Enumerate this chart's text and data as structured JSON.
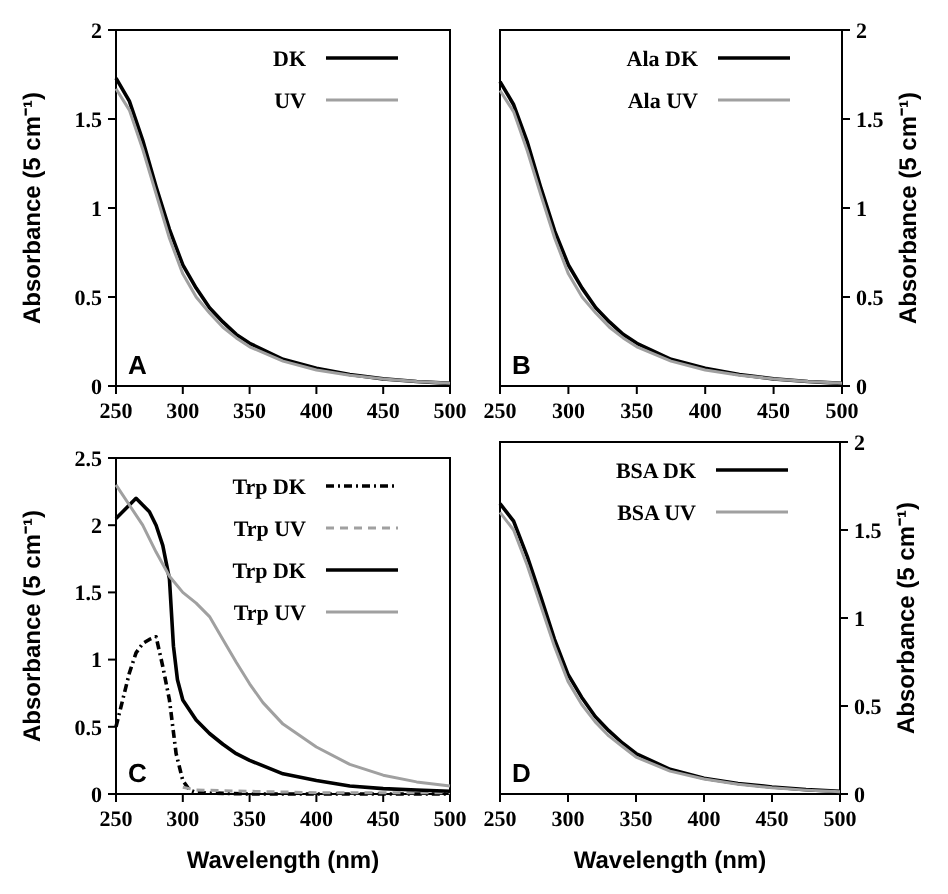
{
  "chart_data": [
    {
      "type": "line",
      "xlim": [
        250,
        500
      ],
      "xticks": [
        250,
        300,
        350,
        400,
        450,
        500
      ],
      "ylim": [
        0,
        2
      ],
      "yticks": [
        0,
        0.5,
        1,
        1.5,
        2
      ],
      "ylabel": "Absorbance  (5 cm⁻¹)",
      "legend": "top right",
      "annotations": [
        "A"
      ],
      "x": [
        250,
        260,
        270,
        280,
        290,
        300,
        310,
        320,
        330,
        340,
        350,
        375,
        400,
        425,
        450,
        475,
        500
      ],
      "series": [
        {
          "name": "DK",
          "color": "#000000",
          "line_style": "solid",
          "values": [
            1.73,
            1.6,
            1.38,
            1.12,
            0.88,
            0.68,
            0.55,
            0.44,
            0.36,
            0.29,
            0.24,
            0.15,
            0.1,
            0.065,
            0.04,
            0.025,
            0.015
          ]
        },
        {
          "name": "UV",
          "color": "#a0a0a0",
          "line_style": "solid",
          "values": [
            1.67,
            1.55,
            1.33,
            1.08,
            0.83,
            0.63,
            0.5,
            0.41,
            0.33,
            0.27,
            0.22,
            0.14,
            0.09,
            0.06,
            0.04,
            0.025,
            0.015
          ]
        }
      ]
    },
    {
      "type": "line",
      "xlim": [
        250,
        500
      ],
      "xticks": [
        250,
        300,
        350,
        400,
        450,
        500
      ],
      "y2lim": [
        0,
        2
      ],
      "y2ticks": [
        0,
        0.5,
        1,
        1.5,
        2
      ],
      "y2label": "Absorbance  (5 cm⁻¹)",
      "legend": "top right",
      "annotations": [
        "B"
      ],
      "x": [
        250,
        260,
        270,
        280,
        290,
        300,
        310,
        320,
        330,
        340,
        350,
        375,
        400,
        425,
        450,
        475,
        500
      ],
      "series": [
        {
          "name": "Ala DK",
          "color": "#000000",
          "line_style": "solid",
          "axis": "y2",
          "values": [
            1.71,
            1.58,
            1.37,
            1.11,
            0.87,
            0.68,
            0.55,
            0.44,
            0.36,
            0.29,
            0.24,
            0.15,
            0.1,
            0.065,
            0.04,
            0.025,
            0.015
          ]
        },
        {
          "name": "Ala UV",
          "color": "#a0a0a0",
          "line_style": "solid",
          "axis": "y2",
          "values": [
            1.66,
            1.54,
            1.32,
            1.07,
            0.83,
            0.63,
            0.5,
            0.41,
            0.33,
            0.27,
            0.22,
            0.14,
            0.09,
            0.06,
            0.04,
            0.025,
            0.015
          ]
        }
      ]
    },
    {
      "type": "line",
      "xlim": [
        250,
        500
      ],
      "xticks": [
        250,
        300,
        350,
        400,
        450,
        500
      ],
      "ylim": [
        0,
        2.5
      ],
      "yticks": [
        0,
        0.5,
        1,
        1.5,
        2,
        2.5
      ],
      "xlabel": "Wavelength (nm)",
      "ylabel": "Absorbance  (5 cm⁻¹)",
      "legend": "top right",
      "annotations": [
        "C"
      ],
      "series": [
        {
          "name": "Trp DK",
          "color": "#000000",
          "line_style": "dotted",
          "x": [
            250,
            255,
            260,
            265,
            270,
            275,
            280,
            285,
            290,
            295,
            300,
            305,
            310,
            350,
            400,
            450,
            500
          ],
          "values": [
            0.5,
            0.7,
            0.9,
            1.05,
            1.12,
            1.15,
            1.17,
            0.95,
            0.7,
            0.3,
            0.1,
            0.03,
            0.01,
            0,
            0,
            0,
            0
          ]
        },
        {
          "name": "Trp UV",
          "color": "#a0a0a0",
          "line_style": "dashed",
          "x": [
            300,
            310,
            350,
            400,
            450,
            500
          ],
          "values": [
            0.05,
            0.03,
            0.02,
            0.01,
            0.01,
            0.01
          ]
        },
        {
          "name": "Trp DK",
          "color": "#000000",
          "line_style": "solid",
          "x": [
            250,
            255,
            260,
            265,
            270,
            275,
            280,
            285,
            290,
            293,
            296,
            300,
            310,
            320,
            330,
            340,
            350,
            375,
            400,
            425,
            450,
            475,
            500
          ],
          "values": [
            2.05,
            2.1,
            2.15,
            2.2,
            2.15,
            2.1,
            2.0,
            1.85,
            1.6,
            1.1,
            0.85,
            0.7,
            0.55,
            0.45,
            0.37,
            0.3,
            0.25,
            0.15,
            0.1,
            0.06,
            0.04,
            0.03,
            0.02
          ]
        },
        {
          "name": "Trp UV",
          "color": "#a0a0a0",
          "line_style": "solid",
          "x": [
            250,
            260,
            270,
            280,
            290,
            300,
            310,
            320,
            330,
            340,
            350,
            360,
            375,
            400,
            425,
            450,
            475,
            500
          ],
          "values": [
            2.3,
            2.15,
            2.0,
            1.8,
            1.62,
            1.5,
            1.42,
            1.32,
            1.15,
            0.98,
            0.82,
            0.68,
            0.52,
            0.35,
            0.22,
            0.14,
            0.09,
            0.06
          ]
        }
      ]
    },
    {
      "type": "line",
      "xlim": [
        250,
        500
      ],
      "xticks": [
        250,
        300,
        350,
        400,
        450,
        500
      ],
      "y2lim": [
        0,
        2
      ],
      "y2ticks": [
        0,
        0.5,
        1,
        1.5,
        2
      ],
      "xlabel": "Wavelength (nm)",
      "y2label": "Absorbance  (5 cm⁻¹)",
      "legend": "top right",
      "annotations": [
        "D"
      ],
      "x": [
        250,
        260,
        270,
        280,
        290,
        300,
        310,
        320,
        330,
        340,
        350,
        375,
        400,
        425,
        450,
        475,
        500
      ],
      "series": [
        {
          "name": "BSA DK",
          "color": "#000000",
          "line_style": "solid",
          "axis": "y2",
          "values": [
            1.65,
            1.55,
            1.35,
            1.12,
            0.88,
            0.68,
            0.55,
            0.44,
            0.36,
            0.29,
            0.23,
            0.14,
            0.09,
            0.06,
            0.04,
            0.025,
            0.015
          ]
        },
        {
          "name": "BSA UV",
          "color": "#a0a0a0",
          "line_style": "solid",
          "axis": "y2",
          "values": [
            1.6,
            1.5,
            1.3,
            1.07,
            0.84,
            0.64,
            0.51,
            0.41,
            0.33,
            0.27,
            0.21,
            0.13,
            0.085,
            0.055,
            0.035,
            0.022,
            0.013
          ]
        }
      ]
    }
  ]
}
